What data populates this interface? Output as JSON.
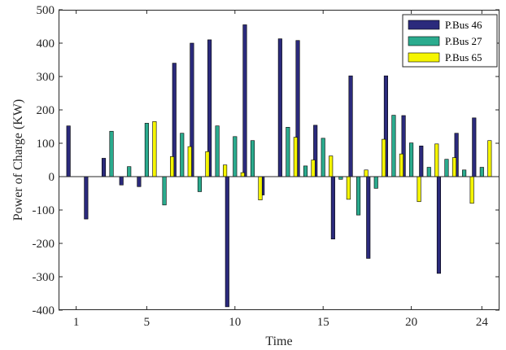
{
  "chart_data": {
    "type": "bar",
    "title": "",
    "xlabel": "Time",
    "ylabel": "Power of Charge (KW)",
    "ylim": [
      -400,
      500
    ],
    "xlim": [
      0,
      25
    ],
    "xticks": [
      1,
      5,
      10,
      15,
      20,
      24
    ],
    "yticks": [
      -400,
      -300,
      -200,
      -100,
      0,
      100,
      200,
      300,
      400,
      500
    ],
    "grid": false,
    "legend_position": "top-right",
    "categories": [
      1,
      2,
      3,
      4,
      5,
      6,
      7,
      8,
      9,
      10,
      11,
      12,
      13,
      14,
      15,
      16,
      17,
      18,
      19,
      20,
      21,
      22,
      23,
      24
    ],
    "series": [
      {
        "name": "P.Bus 46",
        "color": "#2b2a7c",
        "values": [
          152,
          -127,
          55,
          -25,
          -30,
          0,
          340,
          400,
          410,
          -390,
          455,
          -55,
          413,
          408,
          154,
          -187,
          302,
          -245,
          302,
          183,
          92,
          -290,
          130,
          176
        ]
      },
      {
        "name": "P.Bus 27",
        "color": "#2bab8e",
        "values": [
          0,
          0,
          136,
          30,
          160,
          -85,
          130,
          -45,
          152,
          120,
          108,
          0,
          148,
          32,
          115,
          -8,
          -115,
          -35,
          184,
          101,
          28,
          52,
          20,
          28
        ]
      },
      {
        "name": "P.Bus 65",
        "color": "#f5f500",
        "values": [
          0,
          0,
          0,
          0,
          165,
          60,
          90,
          75,
          35,
          12,
          -70,
          0,
          118,
          50,
          62,
          -68,
          20,
          112,
          68,
          -75,
          98,
          57,
          -80,
          108
        ]
      }
    ]
  }
}
